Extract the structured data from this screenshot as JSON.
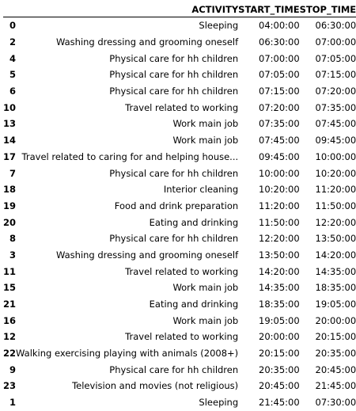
{
  "columns": [
    "",
    "ACTIVITY",
    "START_TIME",
    "STOP_TIME"
  ],
  "rows": [
    {
      "index": "0",
      "activity": "Sleeping",
      "start": "04:00:00",
      "stop": "06:30:00"
    },
    {
      "index": "2",
      "activity": "Washing dressing and grooming oneself",
      "start": "06:30:00",
      "stop": "07:00:00"
    },
    {
      "index": "4",
      "activity": "Physical care for hh children",
      "start": "07:00:00",
      "stop": "07:05:00"
    },
    {
      "index": "5",
      "activity": "Physical care for hh children",
      "start": "07:05:00",
      "stop": "07:15:00"
    },
    {
      "index": "6",
      "activity": "Physical care for hh children",
      "start": "07:15:00",
      "stop": "07:20:00"
    },
    {
      "index": "10",
      "activity": "Travel related to working",
      "start": "07:20:00",
      "stop": "07:35:00"
    },
    {
      "index": "13",
      "activity": "Work main job",
      "start": "07:35:00",
      "stop": "07:45:00"
    },
    {
      "index": "14",
      "activity": "Work main job",
      "start": "07:45:00",
      "stop": "09:45:00"
    },
    {
      "index": "17",
      "activity": "Travel related to caring for and helping house...",
      "start": "09:45:00",
      "stop": "10:00:00"
    },
    {
      "index": "7",
      "activity": "Physical care for hh children",
      "start": "10:00:00",
      "stop": "10:20:00"
    },
    {
      "index": "18",
      "activity": "Interior cleaning",
      "start": "10:20:00",
      "stop": "11:20:00"
    },
    {
      "index": "19",
      "activity": "Food and drink preparation",
      "start": "11:20:00",
      "stop": "11:50:00"
    },
    {
      "index": "20",
      "activity": "Eating and drinking",
      "start": "11:50:00",
      "stop": "12:20:00"
    },
    {
      "index": "8",
      "activity": "Physical care for hh children",
      "start": "12:20:00",
      "stop": "13:50:00"
    },
    {
      "index": "3",
      "activity": "Washing dressing and grooming oneself",
      "start": "13:50:00",
      "stop": "14:20:00"
    },
    {
      "index": "11",
      "activity": "Travel related to working",
      "start": "14:20:00",
      "stop": "14:35:00"
    },
    {
      "index": "15",
      "activity": "Work main job",
      "start": "14:35:00",
      "stop": "18:35:00"
    },
    {
      "index": "21",
      "activity": "Eating and drinking",
      "start": "18:35:00",
      "stop": "19:05:00"
    },
    {
      "index": "16",
      "activity": "Work main job",
      "start": "19:05:00",
      "stop": "20:00:00"
    },
    {
      "index": "12",
      "activity": "Travel related to working",
      "start": "20:00:00",
      "stop": "20:15:00"
    },
    {
      "index": "22",
      "activity": "Walking exercising playing with animals (2008+)",
      "start": "20:15:00",
      "stop": "20:35:00"
    },
    {
      "index": "9",
      "activity": "Physical care for hh children",
      "start": "20:35:00",
      "stop": "20:45:00"
    },
    {
      "index": "23",
      "activity": "Television and movies (not religious)",
      "start": "20:45:00",
      "stop": "21:45:00"
    },
    {
      "index": "1",
      "activity": "Sleeping",
      "start": "21:45:00",
      "stop": "07:30:00"
    }
  ]
}
